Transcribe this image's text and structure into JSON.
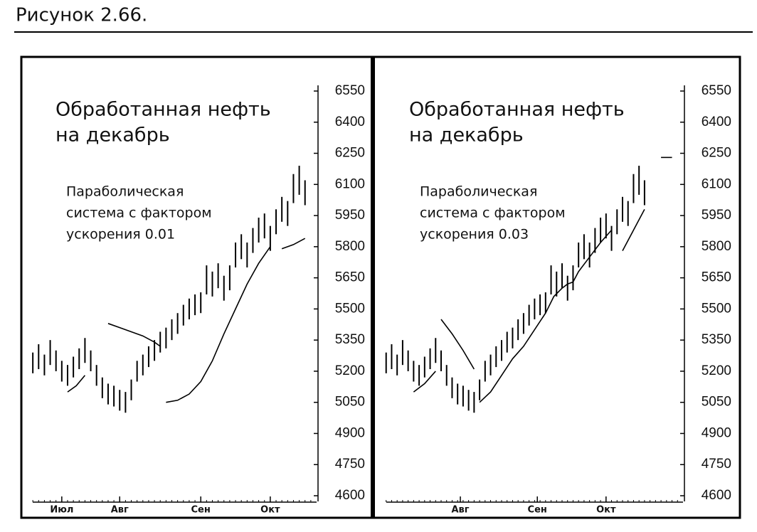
{
  "caption": "Рисунок 2.66.",
  "chart_data": [
    {
      "type": "ohlc",
      "title": [
        "Обработанная нефть",
        "на декабрь"
      ],
      "annotation": [
        "Параболическая",
        "система с фактором",
        "ускорения 0.01"
      ],
      "xlim": [
        0,
        100
      ],
      "xticks": [
        {
          "value": 12,
          "label": "Июл"
        },
        {
          "value": 32,
          "label": "Авг"
        },
        {
          "value": 60,
          "label": "Сен"
        },
        {
          "value": 84,
          "label": "Окт"
        }
      ],
      "ylim": [
        4600,
        6550
      ],
      "yticks": [
        4600,
        4750,
        4900,
        5050,
        5200,
        5350,
        5500,
        5650,
        5800,
        5950,
        6100,
        6250,
        6400,
        6550
      ],
      "x": [
        2,
        4,
        6,
        8,
        10,
        12,
        14,
        16,
        18,
        20,
        22,
        24,
        26,
        28,
        30,
        32,
        34,
        36,
        38,
        40,
        42,
        44,
        46,
        48,
        50,
        52,
        54,
        56,
        58,
        60,
        62,
        64,
        66,
        68,
        70,
        72,
        74,
        76,
        78,
        80,
        82,
        84,
        86,
        88,
        90,
        92,
        94,
        96
      ],
      "high": [
        5290,
        5330,
        5280,
        5350,
        5300,
        5250,
        5230,
        5270,
        5310,
        5360,
        5300,
        5230,
        5170,
        5140,
        5130,
        5110,
        5100,
        5160,
        5250,
        5280,
        5320,
        5350,
        5390,
        5410,
        5450,
        5480,
        5520,
        5550,
        5570,
        5580,
        5710,
        5680,
        5720,
        5660,
        5710,
        5820,
        5860,
        5820,
        5890,
        5940,
        5960,
        5900,
        5980,
        6040,
        6020,
        6150,
        6190,
        6120
      ],
      "low": [
        5190,
        5210,
        5180,
        5230,
        5200,
        5150,
        5130,
        5170,
        5210,
        5240,
        5200,
        5130,
        5070,
        5040,
        5030,
        5010,
        5000,
        5060,
        5150,
        5180,
        5220,
        5250,
        5290,
        5310,
        5350,
        5380,
        5420,
        5450,
        5470,
        5480,
        5570,
        5560,
        5600,
        5540,
        5590,
        5700,
        5740,
        5700,
        5770,
        5820,
        5840,
        5780,
        5860,
        5920,
        5900,
        6010,
        6050,
        6000
      ],
      "sar": {
        "x": [
          14,
          17,
          20,
          24,
          28,
          32,
          36,
          40,
          44,
          46,
          47,
          48,
          52,
          56,
          60,
          64,
          68,
          72,
          76,
          80,
          84,
          86,
          88,
          92,
          96
        ],
        "values": [
          5100,
          5130,
          5180,
          null,
          5430,
          5410,
          5390,
          5370,
          5340,
          5320,
          null,
          5050,
          5060,
          5090,
          5150,
          5250,
          5380,
          5500,
          5620,
          5720,
          5800,
          null,
          5790,
          5810,
          5840
        ]
      }
    },
    {
      "type": "ohlc",
      "title": [
        "Обработанная нефть",
        "на декабрь"
      ],
      "annotation": [
        "Параболическая",
        "система с фактором",
        "ускорения 0.03"
      ],
      "xlim": [
        0,
        110
      ],
      "xticks": [
        {
          "value": 29,
          "label": "Авг"
        },
        {
          "value": 57,
          "label": "Сен"
        },
        {
          "value": 82,
          "label": "Окт"
        }
      ],
      "ylim": [
        4600,
        6550
      ],
      "yticks": [
        4600,
        4750,
        4900,
        5050,
        5200,
        5350,
        5500,
        5650,
        5800,
        5950,
        6100,
        6250,
        6400,
        6550
      ],
      "x": [
        2,
        4,
        6,
        8,
        10,
        12,
        14,
        16,
        18,
        20,
        22,
        24,
        26,
        28,
        30,
        32,
        34,
        36,
        38,
        40,
        42,
        44,
        46,
        48,
        50,
        52,
        54,
        56,
        58,
        60,
        62,
        64,
        66,
        68,
        70,
        72,
        74,
        76,
        78,
        80,
        82,
        84,
        86,
        88,
        90,
        92,
        94,
        96
      ],
      "high": [
        5290,
        5330,
        5280,
        5350,
        5300,
        5250,
        5230,
        5270,
        5310,
        5360,
        5300,
        5230,
        5170,
        5140,
        5130,
        5110,
        5100,
        5160,
        5250,
        5280,
        5320,
        5350,
        5390,
        5410,
        5450,
        5480,
        5520,
        5550,
        5570,
        5580,
        5710,
        5680,
        5720,
        5660,
        5710,
        5820,
        5860,
        5820,
        5890,
        5940,
        5960,
        5900,
        5980,
        6040,
        6020,
        6150,
        6190,
        6120
      ],
      "low": [
        5190,
        5210,
        5180,
        5230,
        5200,
        5150,
        5130,
        5170,
        5210,
        5240,
        5200,
        5130,
        5070,
        5040,
        5030,
        5010,
        5000,
        5060,
        5150,
        5180,
        5220,
        5250,
        5290,
        5310,
        5350,
        5380,
        5420,
        5450,
        5470,
        5480,
        5570,
        5560,
        5600,
        5540,
        5590,
        5700,
        5740,
        5700,
        5770,
        5820,
        5840,
        5780,
        5860,
        5920,
        5900,
        6010,
        6050,
        6000
      ],
      "sar": {
        "x": [
          12,
          16,
          20,
          22,
          22,
          26,
          30,
          34,
          35,
          36,
          40,
          44,
          48,
          52,
          56,
          60,
          63,
          66,
          68,
          70,
          72,
          76,
          80,
          84,
          86,
          88,
          92,
          96,
          99,
          102,
          106
        ],
        "values": [
          5100,
          5140,
          5200,
          null,
          5450,
          5380,
          5300,
          5210,
          null,
          5050,
          5100,
          5180,
          5260,
          5320,
          5400,
          5480,
          5560,
          5600,
          5620,
          5630,
          5680,
          5750,
          5820,
          5880,
          null,
          5780,
          5880,
          5980,
          null,
          6230,
          6230
        ]
      }
    }
  ]
}
